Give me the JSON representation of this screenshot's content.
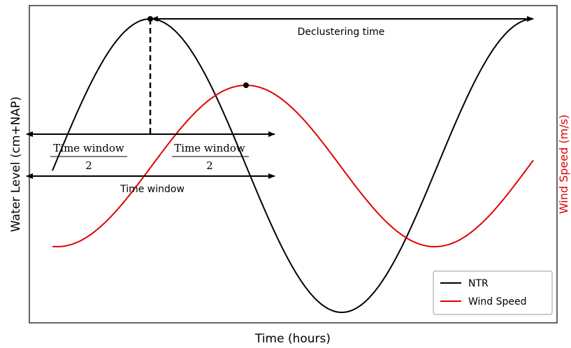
{
  "annotations": {
    "declustering": "Declustering time",
    "half_left_numerator": "Time window",
    "half_left_denominator": "2",
    "half_right_numerator": "Time window",
    "half_right_denominator": "2",
    "full_window": "Time window"
  },
  "axes": {
    "x_label": "Time (hours)",
    "y_label": "Water Level (cm+NAP)",
    "y2_label": "Wind Speed (m/s)"
  },
  "legend": {
    "items": [
      "NTR",
      "Wind Speed"
    ]
  }
}
